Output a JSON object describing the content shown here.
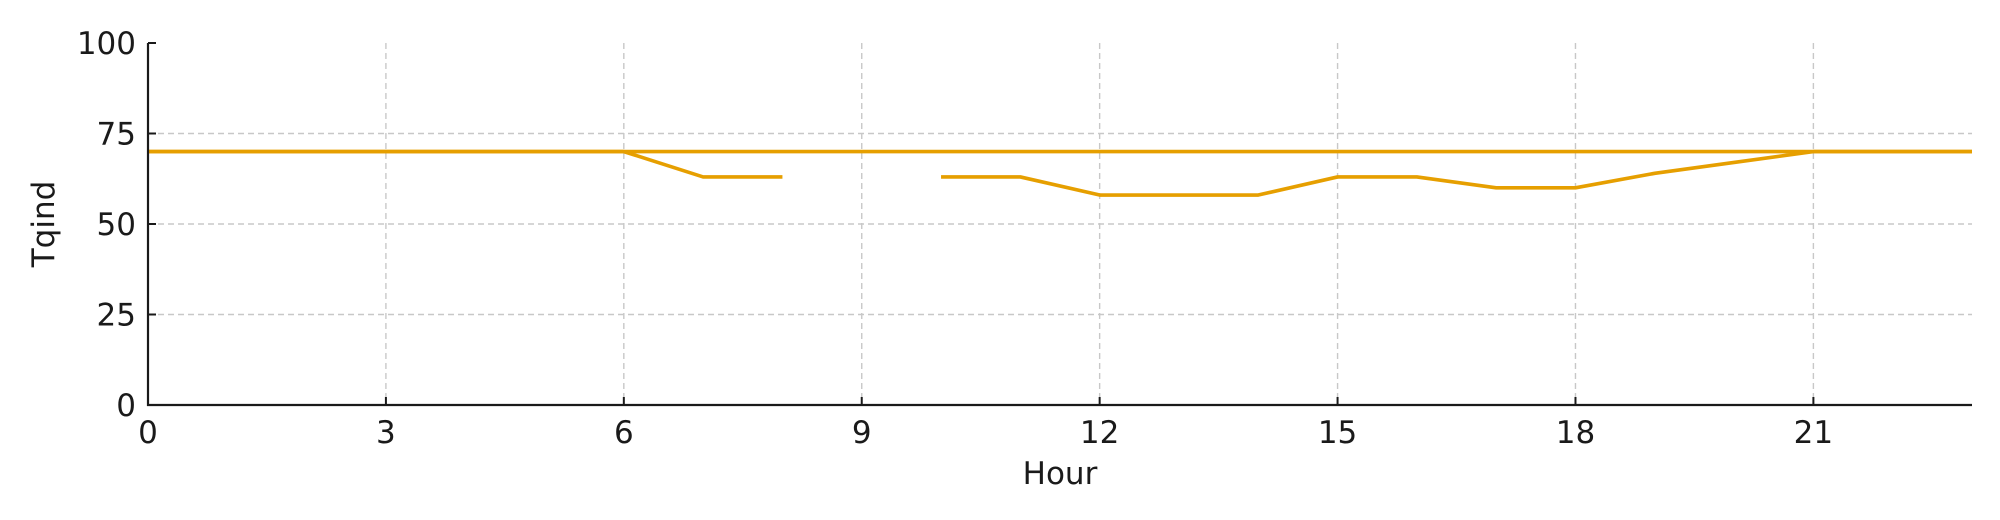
{
  "chart_data": {
    "type": "line",
    "title": "",
    "xlabel": "Hour",
    "ylabel": "Tqind",
    "xlim": [
      0,
      23
    ],
    "ylim": [
      0,
      100
    ],
    "xticks": [
      0,
      3,
      6,
      9,
      12,
      15,
      18,
      21
    ],
    "yticks": [
      0,
      25,
      50,
      75,
      100
    ],
    "grid": true,
    "legend": "none",
    "series": [
      {
        "color": "#e69f00",
        "x": [
          0,
          1,
          2,
          3,
          4,
          5,
          6,
          7,
          8,
          9,
          10,
          11,
          12,
          13,
          14,
          15,
          16,
          17,
          18,
          19,
          20,
          21,
          22,
          23
        ],
        "y": [
          70,
          70,
          70,
          70,
          70,
          70,
          70,
          70,
          70,
          70,
          70,
          70,
          70,
          70,
          70,
          70,
          70,
          70,
          70,
          70,
          70,
          70,
          70,
          70
        ]
      },
      {
        "color": "#e69f00",
        "x": [
          0,
          1,
          2,
          3,
          4,
          5,
          6,
          7,
          8,
          9,
          10,
          11,
          12,
          13,
          14,
          15,
          16,
          17,
          18,
          19,
          20,
          21,
          22,
          23
        ],
        "y": [
          70,
          70,
          70,
          70,
          70,
          70,
          70,
          63,
          63,
          null,
          63,
          63,
          58,
          58,
          58,
          63,
          63,
          60,
          60,
          64,
          67,
          70,
          70,
          70
        ]
      }
    ]
  }
}
